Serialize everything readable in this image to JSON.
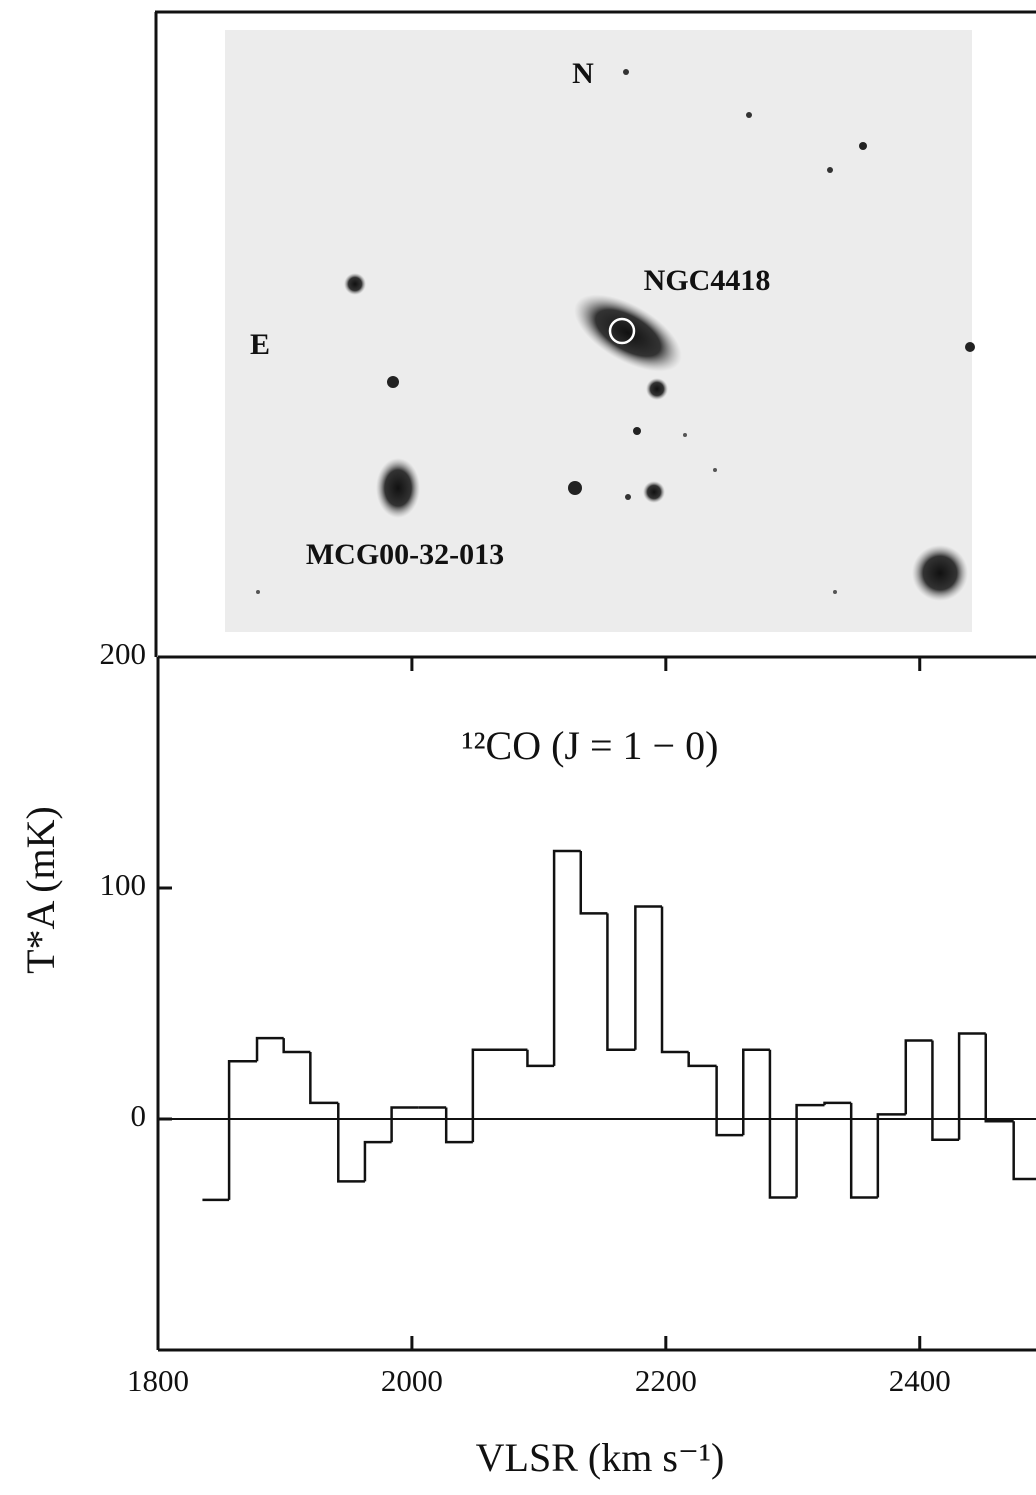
{
  "chart_data": {
    "type": "histogram",
    "title": "¹²CO (J = 1 − 0)",
    "x_label": "VLSR (km s⁻¹)",
    "y_label": "T*A (mK)",
    "annotations": [
      "N",
      "E",
      "NGC4418",
      "MCG00-32-013"
    ],
    "bins": [
      1835,
      1856,
      1878,
      1899,
      1920,
      1942,
      1963,
      1984,
      2005,
      2027,
      2048,
      2069,
      2091,
      2112,
      2133,
      2154,
      2176,
      2197,
      2218,
      2240,
      2261,
      2282,
      2303,
      2325,
      2346,
      2367,
      2389,
      2410,
      2431,
      2452,
      2474,
      2495
    ],
    "values": [
      -35,
      25,
      35,
      29,
      7,
      -27,
      -10,
      5,
      5,
      -10,
      30,
      30,
      23,
      116,
      89,
      30,
      92,
      29,
      23,
      -7,
      30,
      -34,
      6,
      7,
      -34,
      2,
      34,
      -9,
      37,
      -1,
      -26
    ],
    "color": "#111111",
    "xlim": [
      1800,
      2490
    ],
    "ylim": [
      -100,
      200
    ],
    "xticks": [
      1800,
      2000,
      2200,
      2400
    ],
    "yticks": [
      0,
      100,
      200
    ]
  }
}
